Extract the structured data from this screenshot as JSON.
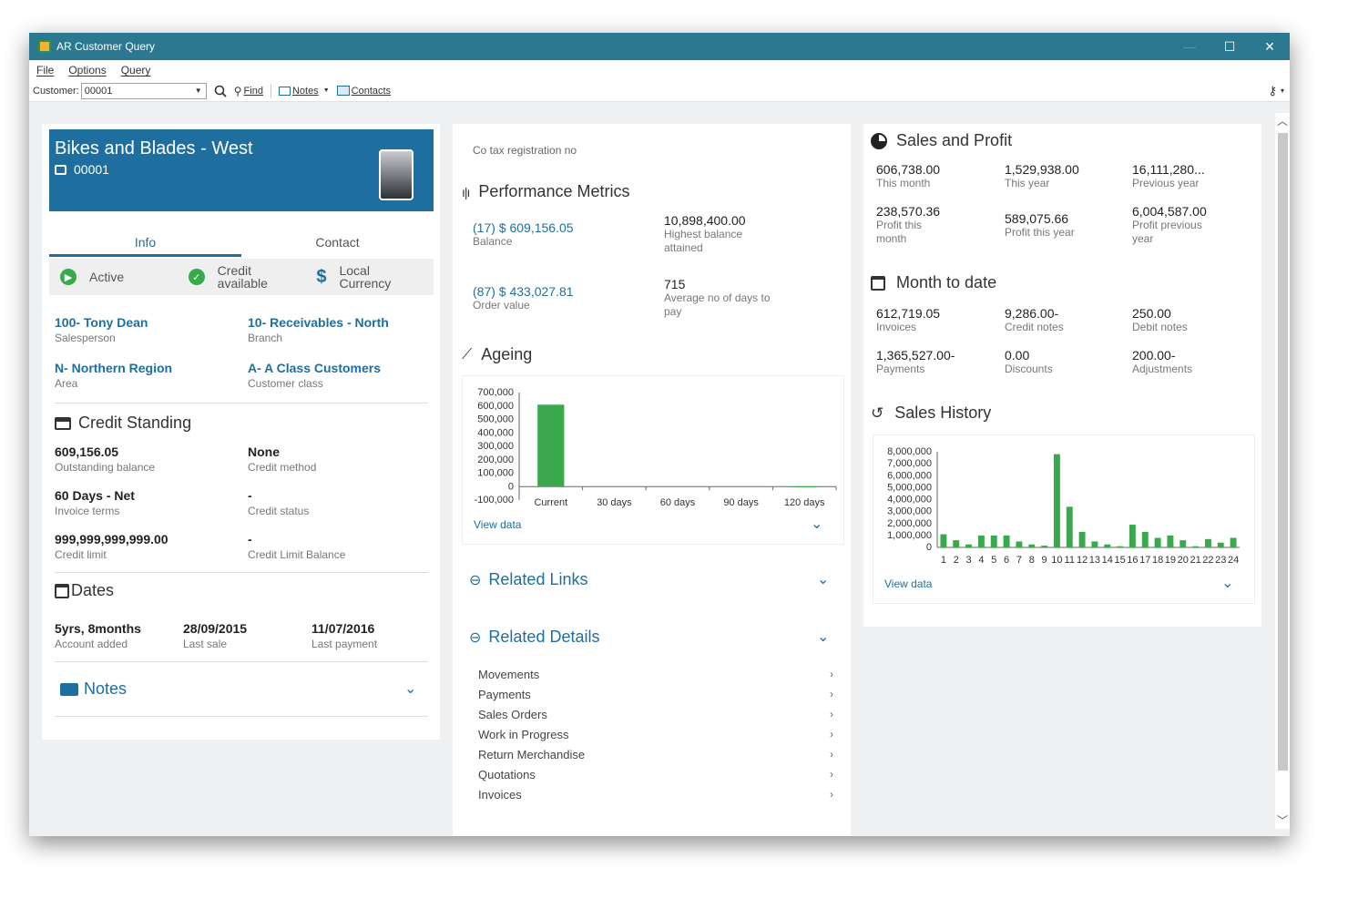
{
  "window": {
    "title": "AR Customer Query",
    "min": "—",
    "max": "☐",
    "close": "✕"
  },
  "menu": [
    "File",
    "Options",
    "Query"
  ],
  "toolbar": {
    "customer_label": "Customer:",
    "customer_value": "00001",
    "find": "Find",
    "notes": "Notes",
    "contacts": "Contacts"
  },
  "customer": {
    "name": "Bikes and Blades - West",
    "id": "00001"
  },
  "tabs": [
    "Info",
    "Contact"
  ],
  "status": {
    "active": "Active",
    "credit": "Credit available",
    "currency": "Local Currency"
  },
  "info": {
    "salesperson": {
      "value": "100- Tony Dean",
      "label": "Salesperson"
    },
    "branch": {
      "value": "10- Receivables - North",
      "label": "Branch"
    },
    "area": {
      "value": "N- Northern Region",
      "label": "Area"
    },
    "customer_class": {
      "value": "A- A Class Customers",
      "label": "Customer class"
    }
  },
  "credit": {
    "title": "Credit Standing",
    "outstanding": {
      "value": "609,156.05",
      "label": "Outstanding balance"
    },
    "method": {
      "value": "None",
      "label": "Credit method"
    },
    "terms": {
      "value": "60 Days - Net",
      "label": "Invoice terms"
    },
    "status": {
      "value": "-",
      "label": "Credit status"
    },
    "limit": {
      "value": "999,999,999,999.00",
      "label": "Credit limit"
    },
    "limit_balance": {
      "value": "-",
      "label": "Credit Limit Balance"
    }
  },
  "dates": {
    "title": "Dates",
    "added": {
      "value": "5yrs, 8months",
      "label": "Account added"
    },
    "last_sale": {
      "value": "28/09/2015",
      "label": "Last sale"
    },
    "last_payment": {
      "value": "11/07/2016",
      "label": "Last payment"
    }
  },
  "notes_title": "Notes",
  "tax_reg": "Co tax registration no",
  "performance": {
    "title": "Performance Metrics",
    "balance": {
      "value": "(17) $ 609,156.05",
      "label": "Balance"
    },
    "highest": {
      "value": "10,898,400.00",
      "label1": "Highest balance",
      "label2": "attained"
    },
    "order": {
      "value": "(87) $ 433,027.81",
      "label": "Order value"
    },
    "avgdays": {
      "value": "715",
      "label1": "Average no of days to",
      "label2": "pay"
    }
  },
  "ageing": {
    "title": "Ageing",
    "view_data": "View data"
  },
  "related_links": "Related Links",
  "related_details": {
    "title": "Related Details",
    "items": [
      "Movements",
      "Payments",
      "Sales Orders",
      "Work in Progress",
      "Return Merchandise",
      "Quotations",
      "Invoices"
    ]
  },
  "sales_profit": {
    "title": "Sales and Profit",
    "this_month": {
      "value": "606,738.00",
      "label": "This month"
    },
    "this_year": {
      "value": "1,529,938.00",
      "label": "This year"
    },
    "prev_year": {
      "value": "16,111,280...",
      "label": "Previous year"
    },
    "profit_month": {
      "value": "238,570.36",
      "label1": "Profit this",
      "label2": "month"
    },
    "profit_year": {
      "value": "589,075.66",
      "label": "Profit this year"
    },
    "profit_prev": {
      "value": "6,004,587.00",
      "label1": "Profit previous",
      "label2": "year"
    }
  },
  "mtd": {
    "title": "Month to date",
    "invoices": {
      "value": "612,719.05",
      "label": "Invoices"
    },
    "credit_notes": {
      "value": "9,286.00-",
      "label": "Credit notes"
    },
    "debit_notes": {
      "value": "250.00",
      "label": "Debit notes"
    },
    "payments": {
      "value": "1,365,527.00-",
      "label": "Payments"
    },
    "discounts": {
      "value": "0.00",
      "label": "Discounts"
    },
    "adjustments": {
      "value": "200.00-",
      "label": "Adjustments"
    }
  },
  "sales_history": {
    "title": "Sales History",
    "view_data": "View data"
  },
  "colors": {
    "accent": "#1e6fa0",
    "titlebar": "#2d7891",
    "bar": "#3aa94d"
  },
  "chart_data": [
    {
      "type": "bar",
      "categories": [
        "Current",
        "30 days",
        "60 days",
        "90 days",
        "120 days"
      ],
      "values": [
        610000,
        0,
        0,
        0,
        2000
      ],
      "ylim": [
        -100000,
        700000
      ],
      "yticks": [
        "700,000",
        "600,000",
        "500,000",
        "400,000",
        "300,000",
        "200,000",
        "100,000",
        "0",
        "-100,000"
      ]
    },
    {
      "type": "bar",
      "categories": [
        "1",
        "2",
        "3",
        "4",
        "5",
        "6",
        "7",
        "8",
        "9",
        "10",
        "11",
        "12",
        "13",
        "14",
        "15",
        "16",
        "17",
        "18",
        "19",
        "20",
        "21",
        "22",
        "23",
        "24"
      ],
      "values": [
        1100000,
        600000,
        250000,
        1000000,
        1000000,
        1000000,
        500000,
        250000,
        150000,
        7800000,
        3400000,
        1300000,
        500000,
        250000,
        100000,
        1900000,
        1300000,
        800000,
        1000000,
        600000,
        100000,
        700000,
        400000,
        800000
      ],
      "ylim": [
        0,
        8000000
      ],
      "yticks": [
        "8,000,000",
        "7,000,000",
        "6,000,000",
        "5,000,000",
        "4,000,000",
        "3,000,000",
        "2,000,000",
        "1,000,000",
        "0"
      ]
    }
  ]
}
